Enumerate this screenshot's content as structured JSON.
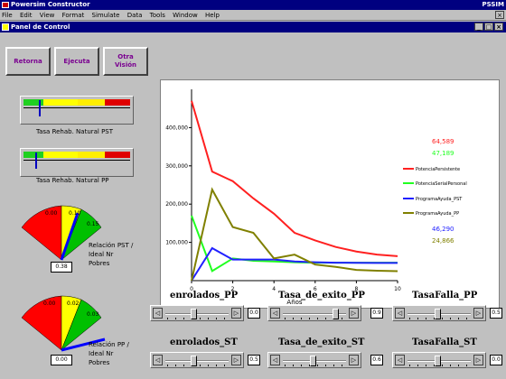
{
  "window": {
    "title": "Powersim Constructor",
    "right_label": "PSSIM"
  },
  "menu": [
    "File",
    "Edit",
    "View",
    "Format",
    "Simulate",
    "Data",
    "Tools",
    "Window",
    "Help"
  ],
  "child": {
    "title": "Panel de Control"
  },
  "buttons": {
    "retorno": "Retorna",
    "ejecuta": "Ejecuta",
    "otra_vision_1": "Otra",
    "otra_vision_2": "Visión"
  },
  "gauges": {
    "rst": {
      "label": "Tasa Rehab. Natural PST",
      "level": 0.14
    },
    "pp": {
      "label": "Tasa Rehab. Natural PP",
      "level": 0.11
    }
  },
  "dials": {
    "rst": {
      "scale": [
        "0.00",
        "0.10",
        "0.15"
      ],
      "label_1": "Relación PST /",
      "label_2": "Ideal Nr",
      "label_3": "Pobres",
      "value": "0.38"
    },
    "pp": {
      "scale": [
        "0.00",
        "0.02",
        "0.03"
      ],
      "label_1": "Relación PP /",
      "label_2": "Ideal Nr",
      "label_3": "Pobres",
      "value": "0.00"
    }
  },
  "chart_data": {
    "type": "line",
    "x": [
      0,
      1,
      2,
      3,
      4,
      5,
      6,
      7,
      8,
      9,
      10
    ],
    "xlabel": "Años",
    "xticks": [
      "0",
      "2",
      "4",
      "6",
      "8",
      "10"
    ],
    "yticks": [
      "100,000",
      "200,000",
      "300,000",
      "400,000"
    ],
    "ylim": [
      0,
      500000
    ],
    "series": [
      {
        "name": "PotenciaPersistente",
        "color": "#ff2020",
        "value_label": "64,589",
        "values": [
          470000,
          285000,
          260000,
          215000,
          175000,
          125000,
          105000,
          88000,
          76000,
          68000,
          64000
        ]
      },
      {
        "name": "PotenciaSerialPersonal",
        "color": "#20ff20",
        "value_label": "47,189",
        "values": [
          170000,
          25000,
          58000,
          52000,
          50000,
          48000,
          47000,
          47000,
          47000,
          47000,
          47000
        ]
      },
      {
        "name": "ProgramaAyuda_PST",
        "color": "#2020ff",
        "value_label": "46,290",
        "values": [
          0,
          85000,
          55000,
          55000,
          55000,
          50000,
          48000,
          47000,
          46500,
          46300,
          46290
        ]
      },
      {
        "name": "ProgramaAyuda_PP",
        "color": "#808000",
        "value_label": "24,866",
        "values": [
          0,
          238000,
          140000,
          125000,
          58000,
          68000,
          42000,
          36000,
          28000,
          26000,
          24866
        ]
      }
    ]
  },
  "sliders": [
    {
      "title": "enrolados_PP",
      "value": "0.0",
      "pos": 0.45
    },
    {
      "title": "Tasa_de_exito_PP",
      "value": "0.9",
      "pos": 0.88
    },
    {
      "title": "TasaFalla_PP",
      "value": "0.5",
      "pos": 0.48
    },
    {
      "title": "enrolados_ST",
      "value": "0.5",
      "pos": 0.45
    },
    {
      "title": "Tasa_de_exito_ST",
      "value": "0.6",
      "pos": 0.48
    },
    {
      "title": "TasaFalla_ST",
      "value": "0.0",
      "pos": 0.48
    }
  ]
}
